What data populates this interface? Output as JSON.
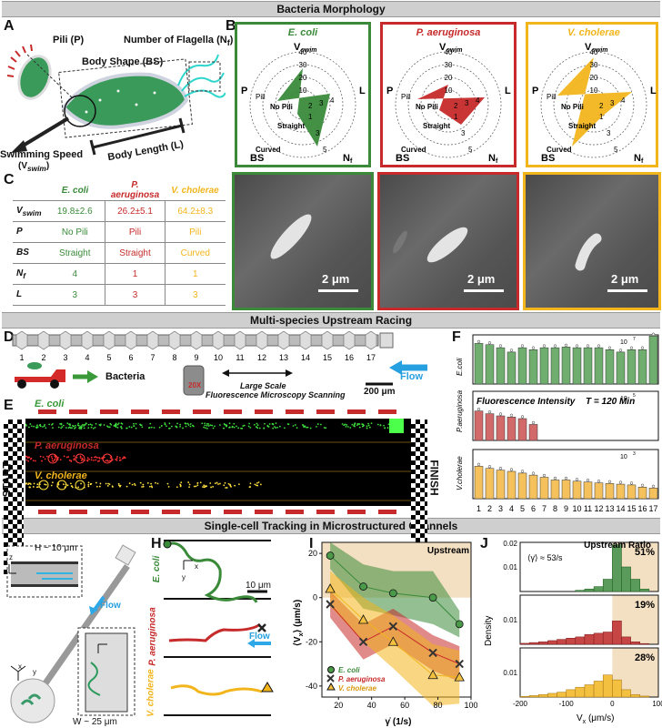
{
  "banners": {
    "morphology": "Bacteria Morphology",
    "racing": "Multi-species Upstream Racing",
    "tracking": "Single-cell Tracking in Microstructured Channels"
  },
  "panel_letters": [
    "A",
    "B",
    "C",
    "D",
    "E",
    "F",
    "G",
    "H",
    "I",
    "J"
  ],
  "colors": {
    "ecoli": "#3a8a3a",
    "paeruginosa": "#c62a2a",
    "vcholerae": "#f2b51c",
    "sand": "#f3dfc1"
  },
  "panelA": {
    "pili": "Pili (P)",
    "flagella": "Number of Flagella (N",
    "flagella_sub": "f",
    "flagella_close": ")",
    "body_shape": "Body Shape (BS)",
    "body_length": "Body Length (L)",
    "swim_speed": "Swimming Speed",
    "swim_speed_sym": "(V",
    "swim_speed_sub": "swim",
    "swim_speed_close": ")"
  },
  "panelB": {
    "species": [
      "E. coli",
      "P. aeruginosa",
      "V. cholerae"
    ],
    "axis_top": "V",
    "axis_top_sub": "swim",
    "axis_left": "P",
    "axis_right": "L",
    "axis_bottom_left": "BS",
    "axis_bottom_right": "N",
    "axis_bottom_right_sub": "f",
    "ring_labels": [
      "40",
      "30",
      "20",
      "10"
    ],
    "pili_labels": [
      "Pili",
      "No Pili"
    ],
    "shape_labels": [
      "Straight",
      "Curved"
    ],
    "l_ticks": [
      "2",
      "3",
      "4"
    ],
    "nf_ticks": [
      "1",
      "3",
      "5"
    ],
    "scale": "2 μm"
  },
  "panelC": {
    "headers": [
      "E. coli",
      "P. aeruginosa",
      "V. cholerae"
    ],
    "rows": [
      {
        "label": "V",
        "sub": "swim",
        "values": [
          "19.8±2.6",
          "26.2±5.1",
          "64.2±8.3"
        ]
      },
      {
        "label": "P",
        "sub": "",
        "values": [
          "No Pili",
          "Pili",
          "Pili"
        ]
      },
      {
        "label": "BS",
        "sub": "",
        "values": [
          "Straight",
          "Straight",
          "Curved"
        ]
      },
      {
        "label": "N",
        "sub": "f",
        "values": [
          "4",
          "1",
          "1"
        ]
      },
      {
        "label": "L",
        "sub": "",
        "values": [
          "3",
          "3",
          "3"
        ]
      }
    ]
  },
  "panelD": {
    "chambers": [
      "1",
      "2",
      "3",
      "4",
      "5",
      "6",
      "7",
      "8",
      "9",
      "10",
      "11",
      "12",
      "13",
      "14",
      "15",
      "16",
      "17"
    ],
    "bacteria": "Bacteria",
    "objective": "20X",
    "scan1": "Large Scale",
    "scan2": "Fluorescence Microscopy Scanning",
    "flow": "Flow",
    "scale": "200 μm"
  },
  "panelE": {
    "start": "START",
    "finish": "FINISH",
    "lanes": [
      "E. coli",
      "P. aeruginosa",
      "V. cholerae"
    ]
  },
  "panelF": {
    "title": "Fluorescence Intensity",
    "time": "T = 120 Min",
    "ylabels": [
      "E.coli",
      "P.aeruginosa",
      "V.cholerae"
    ],
    "yticks": [
      "10",
      "10",
      "10"
    ],
    "ytick_exps": [
      "7",
      "5",
      "3"
    ]
  },
  "panelG": {
    "height": "H ~ 10 μm",
    "width": "W ~ 25 μm",
    "flow": "Flow",
    "axes": [
      "x",
      "y",
      "z"
    ]
  },
  "panelH": {
    "species": [
      "E. coli",
      "P. aeruginosa",
      "V. cholerae"
    ],
    "scale": "10 μm",
    "flow": "Flow",
    "axes": [
      "x",
      "y"
    ]
  },
  "panelI": {
    "title": "Upstream",
    "ylabel": "⟨V",
    "ylabel_sub": "x",
    "ylabel_close": "⟩ (μm/s)",
    "xlabel": "γ̇ (1/s)",
    "legend": [
      "E. coli",
      "P. aeruginosa",
      "V. cholerae"
    ]
  },
  "panelJ": {
    "title": "Upstream Ratio",
    "shear": "⟨γ̇⟩ ≈ 53/s",
    "ylabel": "Density",
    "xlabel": "V",
    "xlabel_sub": "x",
    "xlabel_close": " (μm/s)",
    "percents": [
      "51%",
      "19%",
      "28%"
    ]
  },
  "chart_data": [
    {
      "type": "bar",
      "title": "Fluorescence Intensity",
      "subtitle": "T = 120 Min",
      "categories": [
        "1",
        "2",
        "3",
        "4",
        "5",
        "6",
        "7",
        "8",
        "9",
        "10",
        "11",
        "12",
        "13",
        "14",
        "15",
        "16",
        "17"
      ],
      "log_scale": true,
      "series": [
        {
          "name": "E.coli",
          "values": [
            4500000,
            4000000,
            3000000,
            2000000,
            3000000,
            2500000,
            3000000,
            3000000,
            3200000,
            3000000,
            3000000,
            3000000,
            2500000,
            2000000,
            2500000,
            2500000,
            9000000
          ],
          "ylim": [
            100000,
            10000000
          ]
        },
        {
          "name": "P.aeruginosa",
          "values": [
            250000,
            150000,
            100000,
            80000,
            60000,
            20000,
            0,
            0,
            0,
            0,
            0,
            0,
            0,
            0,
            0,
            0,
            0
          ],
          "ylim": [
            1000,
            10000000
          ]
        },
        {
          "name": "V.cholerae",
          "values": [
            200000,
            120000,
            80000,
            60000,
            40000,
            25000,
            15000,
            8000,
            8000,
            6000,
            5000,
            4000,
            3500,
            3000,
            2500,
            1500,
            1200
          ],
          "ylim": [
            100,
            10000000
          ]
        }
      ]
    },
    {
      "type": "line",
      "title": "Upstream",
      "xlabel": "γ̇ (1/s)",
      "xlim": [
        10,
        100
      ],
      "ylim": [
        -45,
        25
      ],
      "x": [
        15,
        35,
        53,
        77,
        93
      ],
      "series": [
        {
          "name": "E. coli",
          "values": [
            19,
            5,
            2,
            0,
            -12
          ]
        },
        {
          "name": "P. aeruginosa",
          "values": [
            -3,
            -20,
            -13,
            -25,
            -30
          ]
        },
        {
          "name": "V. cholerae",
          "values": [
            4,
            -10,
            -20,
            -35,
            -36
          ]
        }
      ]
    },
    {
      "type": "bar",
      "title": "Upstream Ratio",
      "ylabel": "Density",
      "xlim": [
        -200,
        100
      ],
      "ylim": [
        0,
        0.02
      ],
      "x": [
        -190,
        -170,
        -150,
        -130,
        -110,
        -90,
        -70,
        -50,
        -30,
        -10,
        10,
        30,
        50,
        70,
        90
      ],
      "series": [
        {
          "name": "E. coli",
          "values": [
            0,
            0,
            0,
            0,
            0,
            0,
            0.0005,
            0.001,
            0.002,
            0.005,
            0.019,
            0.01,
            0.005,
            0.001,
            0
          ]
        },
        {
          "name": "P. aeruginosa",
          "values": [
            0.0004,
            0.0007,
            0.001,
            0.0015,
            0.002,
            0.0025,
            0.003,
            0.004,
            0.0045,
            0.005,
            0.0095,
            0.003,
            0.001,
            0.0003,
            0
          ]
        },
        {
          "name": "V. cholerae",
          "values": [
            0.0003,
            0.0006,
            0.001,
            0.0015,
            0.002,
            0.003,
            0.004,
            0.005,
            0.0065,
            0.009,
            0.007,
            0.003,
            0.001,
            0.0004,
            0
          ]
        }
      ]
    }
  ]
}
